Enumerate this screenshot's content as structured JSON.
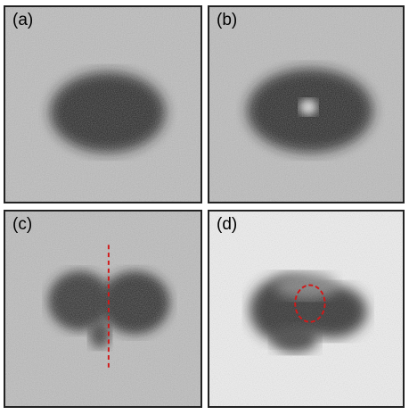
{
  "panels": [
    {
      "id": "a",
      "label": "(a)"
    },
    {
      "id": "b",
      "label": "(b)"
    },
    {
      "id": "c",
      "label": "(c)"
    },
    {
      "id": "d",
      "label": "(d)"
    }
  ],
  "colors": {
    "background_gray": "#bdbdbd",
    "light_background": "#f2f2f2",
    "dark_region": "#1e1e1e",
    "annotation_red": "#d11a1a",
    "frame": "#222222"
  }
}
